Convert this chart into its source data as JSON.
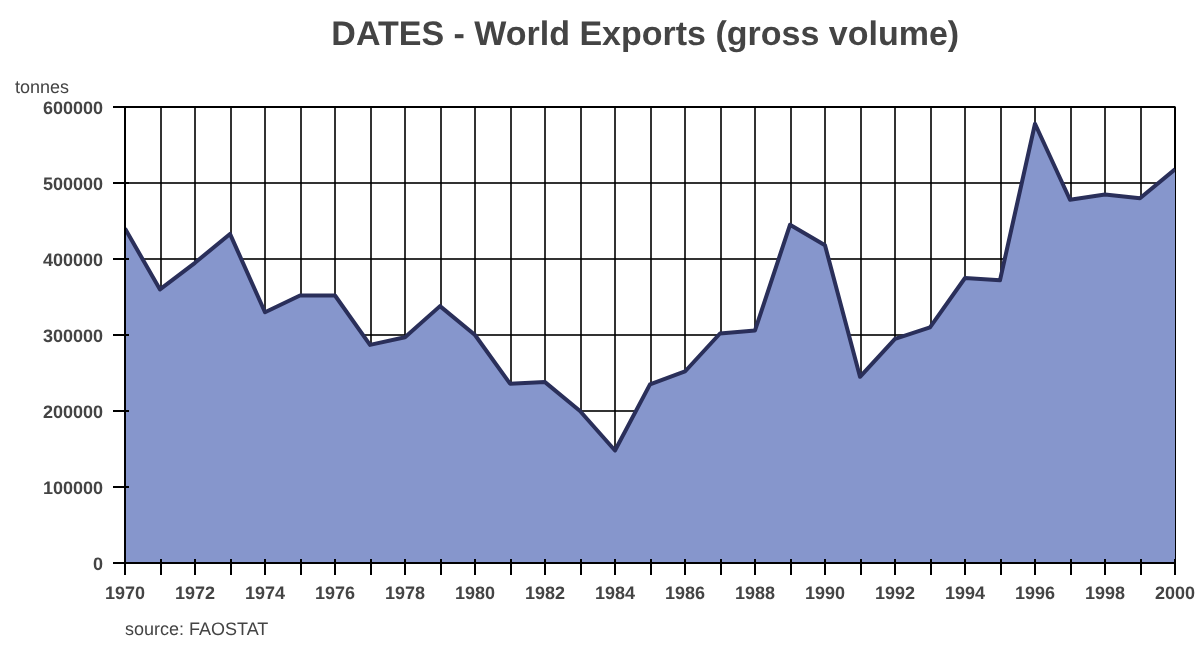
{
  "chart_data": {
    "type": "area",
    "title": "DATES - World  Exports (gross volume)",
    "ylabel": "tonnes",
    "annotations": [
      "source: FAOSTAT"
    ],
    "x": [
      1970,
      1971,
      1972,
      1973,
      1974,
      1975,
      1976,
      1977,
      1978,
      1979,
      1980,
      1981,
      1982,
      1983,
      1984,
      1985,
      1986,
      1987,
      1988,
      1989,
      1990,
      1991,
      1992,
      1993,
      1994,
      1995,
      1996,
      1997,
      1998,
      1999,
      2000
    ],
    "series": [
      {
        "color": "#8696cc",
        "values": [
          440000,
          360000,
          395000,
          433000,
          330000,
          352000,
          352000,
          287000,
          297000,
          338000,
          300000,
          236000,
          238000,
          200000,
          148000,
          235000,
          252000,
          302000,
          306000,
          445000,
          418000,
          245000,
          295000,
          310000,
          375000,
          372000,
          578000,
          478000,
          485000,
          480000,
          518000
        ]
      }
    ],
    "xlim": [
      1970,
      2000
    ],
    "xticks": [
      1970,
      {
        "value": 1971,
        "label": null
      },
      1972,
      {
        "value": 1973,
        "label": null
      },
      1974,
      {
        "value": 1975,
        "label": null
      },
      1976,
      {
        "value": 1977,
        "label": null
      },
      1978,
      {
        "value": 1979,
        "label": null
      },
      1980,
      {
        "value": 1981,
        "label": null
      },
      1982,
      {
        "value": 1983,
        "label": null
      },
      1984,
      {
        "value": 1985,
        "label": null
      },
      1986,
      {
        "value": 1987,
        "label": null
      },
      1988,
      {
        "value": 1989,
        "label": null
      },
      1990,
      {
        "value": 1991,
        "label": null
      },
      1992,
      {
        "value": 1993,
        "label": null
      },
      1994,
      {
        "value": 1995,
        "label": null
      },
      1996,
      {
        "value": 1997,
        "label": null
      },
      1998,
      {
        "value": 1999,
        "label": null
      },
      2000
    ],
    "ylim": [
      0,
      600000
    ],
    "yticks": [
      0,
      100000,
      200000,
      300000,
      400000,
      500000,
      600000
    ],
    "grid": true
  }
}
